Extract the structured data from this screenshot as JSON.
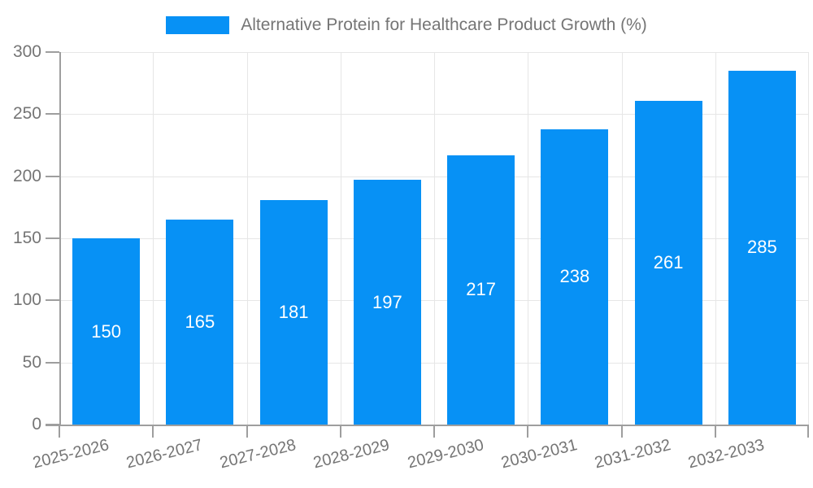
{
  "chart_data": {
    "type": "bar",
    "title": "Alternative Protein for Healthcare Product Growth (%)",
    "categories": [
      "2025-2026",
      "2026-2027",
      "2027-2028",
      "2028-2029",
      "2029-2030",
      "2030-2031",
      "2031-2032",
      "2032-2033"
    ],
    "values": [
      150,
      165,
      181,
      197,
      217,
      238,
      261,
      285
    ],
    "xlabel": "",
    "ylabel": "",
    "ylim": [
      0,
      300
    ],
    "yticks": [
      0,
      50,
      100,
      150,
      200,
      250,
      300
    ],
    "grid": true,
    "legend_position": "top",
    "x_label_rotation_deg": -14,
    "value_labels": "centered-in-bar",
    "colors": {
      "bar": "#0791f5",
      "bar_value_label": "#ffffff",
      "axis_text": "#757575",
      "axis_line": "#9e9e9e",
      "gridline": "#e6e6e6",
      "background": "#ffffff"
    }
  }
}
